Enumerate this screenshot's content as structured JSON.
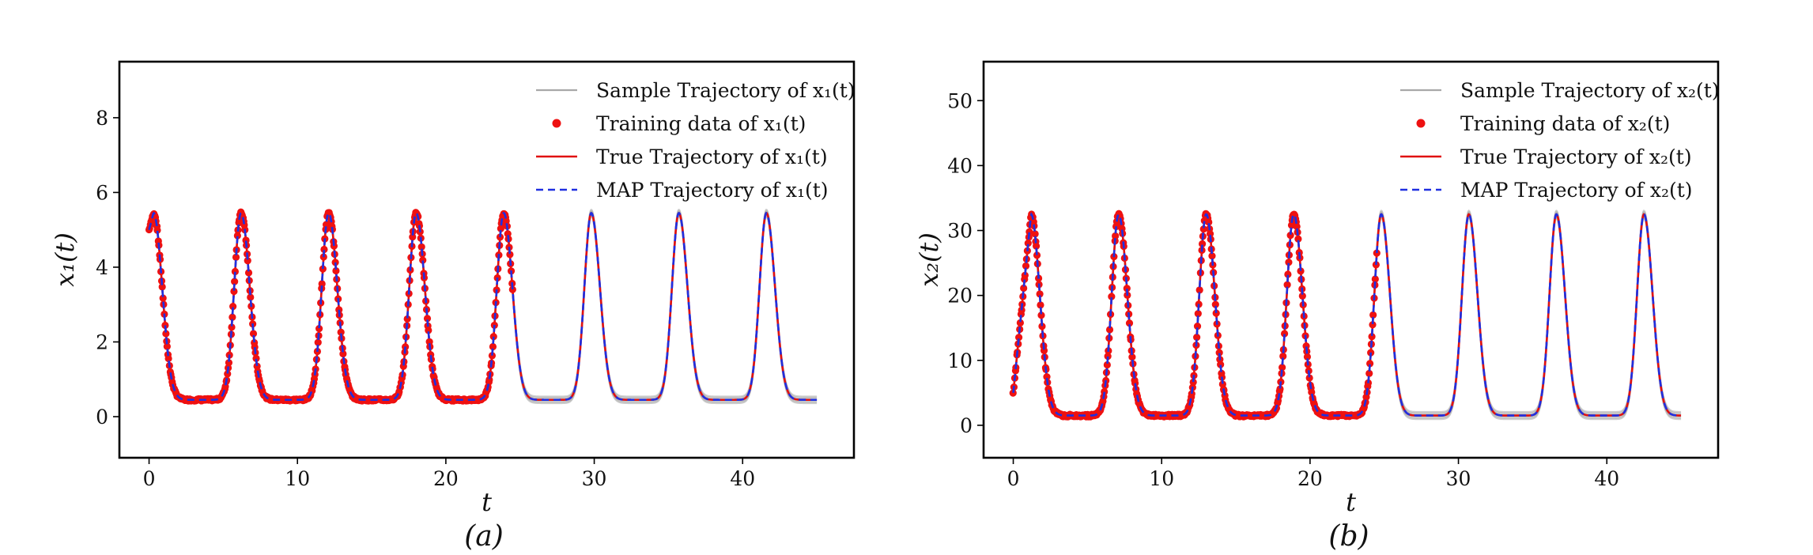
{
  "colors": {
    "sample": "#a8a8a8",
    "training": "#ee1111",
    "true": "#e01010",
    "map": "#1f2fe0",
    "axes": "#000000"
  },
  "chart_data": [
    {
      "type": "line",
      "panel_label": "(a)",
      "xlabel": "t",
      "ylabel": "x₁(t)",
      "xlim": [
        -2,
        47.5
      ],
      "ylim": [
        -1.1,
        9.5
      ],
      "xticks": [
        0,
        10,
        20,
        30,
        40
      ],
      "yticks": [
        0,
        2,
        4,
        6,
        8
      ],
      "grid": false,
      "legend_position": "top-right",
      "legend": [
        "Sample Trajectory of x₁(t)",
        "Training data of x₁(t)",
        "True Trajectory of x₁(t)",
        "MAP Trajectory of x₁(t)"
      ],
      "period": 5.9,
      "peak_times": [
        0.3,
        6.2,
        12.1,
        18.0,
        23.9,
        29.8,
        35.7,
        41.6
      ],
      "peak_value": 5.45,
      "trough_value": 0.45,
      "initial_value": 5.0,
      "t_end": 45,
      "training_range": [
        0,
        24.5
      ],
      "series": [
        {
          "name": "Sample Trajectory of x₁(t)",
          "style": "gray band"
        },
        {
          "name": "Training data of x₁(t)",
          "style": "red dots"
        },
        {
          "name": "True Trajectory of x₁(t)",
          "style": "red solid"
        },
        {
          "name": "MAP Trajectory of x₁(t)",
          "style": "blue dashed"
        }
      ]
    },
    {
      "type": "line",
      "panel_label": "(b)",
      "xlabel": "t",
      "ylabel": "x₂(t)",
      "xlim": [
        -2,
        47.5
      ],
      "ylim": [
        -5,
        56
      ],
      "xticks": [
        0,
        10,
        20,
        30,
        40
      ],
      "yticks": [
        0,
        10,
        20,
        30,
        40,
        50
      ],
      "grid": false,
      "legend_position": "top-right",
      "legend": [
        "Sample Trajectory of x₂(t)",
        "Training data of x₂(t)",
        "True Trajectory of x₂(t)",
        "MAP Trajectory of x₂(t)"
      ],
      "period": 5.9,
      "peak_times": [
        1.2,
        7.1,
        13.0,
        18.9,
        24.8,
        30.7,
        36.6,
        42.5
      ],
      "peak_value": 32.5,
      "trough_value": 1.5,
      "initial_value": 5.0,
      "t_end": 45,
      "training_range": [
        0,
        24.5
      ],
      "series": [
        {
          "name": "Sample Trajectory of x₂(t)",
          "style": "gray band"
        },
        {
          "name": "Training data of x₂(t)",
          "style": "red dots"
        },
        {
          "name": "True Trajectory of x₂(t)",
          "style": "red solid"
        },
        {
          "name": "MAP Trajectory of x₂(t)",
          "style": "blue dashed"
        }
      ]
    }
  ]
}
